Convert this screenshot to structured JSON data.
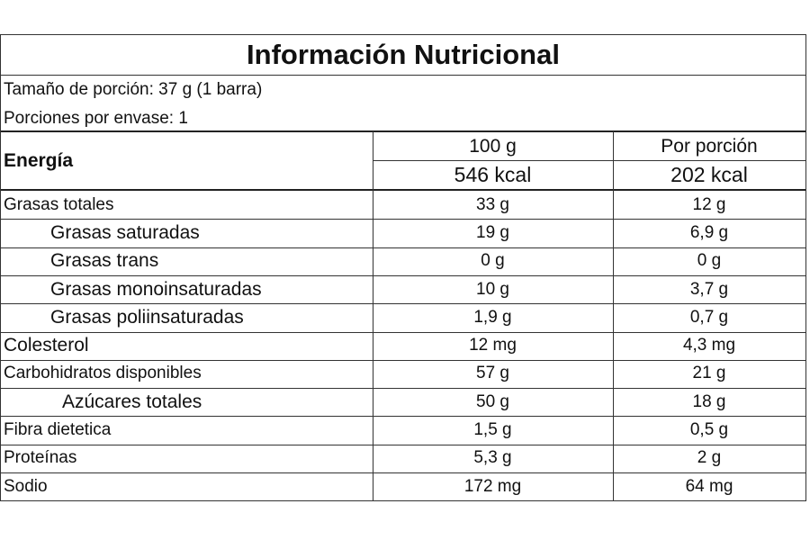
{
  "header": {
    "title": "Información Nutricional",
    "serving_size": "Tamaño de porción: 37 g (1 barra)",
    "servings_per_container": "Porciones por envase: 1"
  },
  "energy": {
    "label": "Energía",
    "columns": [
      "100 g",
      "Por porción"
    ],
    "values": [
      "546 kcal",
      "202 kcal"
    ]
  },
  "table": {
    "rows": [
      [
        "Grasas totales",
        "33 g",
        "12 g"
      ],
      [
        "Grasas saturadas",
        "19 g",
        "6,9 g"
      ],
      [
        "Grasas trans",
        "0 g",
        "0 g"
      ],
      [
        "Grasas monoinsaturadas",
        "10 g",
        "3,7 g"
      ],
      [
        "Grasas poliinsaturadas",
        "1,9 g",
        "0,7 g"
      ],
      [
        "Colesterol",
        "12 mg",
        "4,3 mg"
      ],
      [
        "Carbohidratos disponibles",
        "57 g",
        "21 g"
      ],
      [
        "Azúcares totales",
        "50 g",
        "18 g"
      ],
      [
        "Fibra dietetica",
        "1,5 g",
        "0,5 g"
      ],
      [
        "Proteínas",
        "5,3 g",
        "2 g"
      ],
      [
        "Sodio",
        "172 mg",
        "64 mg"
      ]
    ]
  }
}
